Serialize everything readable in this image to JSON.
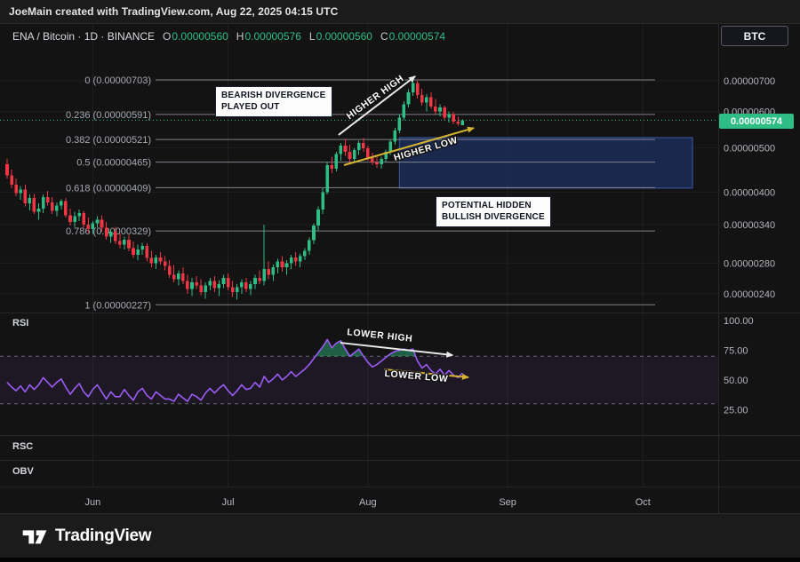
{
  "colors": {
    "up": "#2ebd85",
    "down": "#f23645",
    "rsi_line": "#9b5cf5",
    "yellow_line": "#d4b330",
    "white_line": "#e9e9e9",
    "fib_line": "#8b8e98",
    "axis_text": "#b2b5be",
    "zone_fill": "#1d2b55",
    "zone_border": "#3b59a6"
  },
  "header": {
    "attribution": "JoeMain created with TradingView.com, Aug 22, 2025 04:15 UTC"
  },
  "symbol_bar": {
    "title": "ENA / Bitcoin · 1D · BINANCE",
    "ohlc": {
      "o_label": "O",
      "o": "0.00000560",
      "h_label": "H",
      "h": "0.00000576",
      "l_label": "L",
      "l": "0.00000560",
      "c_label": "C",
      "c": "0.00000574"
    },
    "currency_button": "BTC"
  },
  "panes": {
    "rsi": "RSI",
    "rsc": "RSC",
    "obv": "OBV"
  },
  "price_tag": "0.00000574",
  "annotations": {
    "bearish_box_line1": "BEARISH DIVERGENCE",
    "bearish_box_line2": "PLAYED OUT",
    "bullish_box_line1": "POTENTIAL HIDDEN",
    "bullish_box_line2": "BULLISH DIVERGENCE",
    "higher_high": "HIGHER HIGH",
    "higher_low": "HIGHER LOW",
    "lower_high": "LOWER HIGH",
    "lower_low": "LOWER LOW"
  },
  "footer": {
    "brand": "TradingView"
  },
  "chart_data": {
    "type": "candlestick",
    "symbol": "ENA / Bitcoin",
    "exchange": "BINANCE",
    "interval": "1D",
    "price_unit": "BTC, OHLC values in 1e-8 BTC",
    "start_date": "2025-05-13",
    "end_date": "2025-08-22",
    "ohlc_display": {
      "open": "0.00000560",
      "high": "0.00000576",
      "low": "0.00000560",
      "close": "0.00000574"
    },
    "last_price": 574,
    "candles": [
      [
        460,
        472,
        428,
        435
      ],
      [
        435,
        448,
        408,
        415
      ],
      [
        415,
        428,
        392,
        398
      ],
      [
        398,
        412,
        385,
        405
      ],
      [
        405,
        415,
        372,
        378
      ],
      [
        378,
        395,
        365,
        388
      ],
      [
        388,
        396,
        358,
        362
      ],
      [
        362,
        378,
        348,
        368
      ],
      [
        368,
        395,
        360,
        390
      ],
      [
        390,
        402,
        374,
        380
      ],
      [
        380,
        390,
        358,
        364
      ],
      [
        364,
        380,
        354,
        374
      ],
      [
        374,
        386,
        366,
        382
      ],
      [
        382,
        388,
        352,
        356
      ],
      [
        356,
        368,
        338,
        344
      ],
      [
        344,
        362,
        336,
        354
      ],
      [
        354,
        366,
        346,
        360
      ],
      [
        360,
        364,
        334,
        340
      ],
      [
        340,
        352,
        326,
        332
      ],
      [
        332,
        346,
        324,
        342
      ],
      [
        342,
        354,
        334,
        348
      ],
      [
        348,
        356,
        328,
        334
      ],
      [
        334,
        344,
        315,
        320
      ],
      [
        320,
        332,
        310,
        328
      ],
      [
        328,
        336,
        308,
        313
      ],
      [
        313,
        325,
        302,
        307
      ],
      [
        307,
        320,
        300,
        315
      ],
      [
        315,
        323,
        297,
        302
      ],
      [
        302,
        312,
        287,
        292
      ],
      [
        292,
        307,
        284,
        300
      ],
      [
        300,
        310,
        292,
        305
      ],
      [
        305,
        309,
        282,
        287
      ],
      [
        287,
        298,
        274,
        280
      ],
      [
        280,
        292,
        272,
        288
      ],
      [
        288,
        296,
        278,
        282
      ],
      [
        282,
        290,
        270,
        276
      ],
      [
        276,
        284,
        260,
        264
      ],
      [
        264,
        277,
        254,
        258
      ],
      [
        258,
        270,
        250,
        266
      ],
      [
        266,
        274,
        252,
        256
      ],
      [
        256,
        264,
        240,
        246
      ],
      [
        246,
        260,
        237,
        254
      ],
      [
        254,
        262,
        246,
        250
      ],
      [
        250,
        258,
        238,
        242
      ],
      [
        242,
        254,
        234,
        250
      ],
      [
        250,
        260,
        244,
        256
      ],
      [
        256,
        262,
        242,
        247
      ],
      [
        247,
        257,
        237,
        252
      ],
      [
        252,
        264,
        247,
        260
      ],
      [
        260,
        266,
        244,
        248
      ],
      [
        248,
        256,
        236,
        242
      ],
      [
        242,
        252,
        233,
        248
      ],
      [
        248,
        258,
        240,
        254
      ],
      [
        254,
        260,
        242,
        246
      ],
      [
        246,
        256,
        238,
        252
      ],
      [
        252,
        264,
        246,
        260
      ],
      [
        260,
        270,
        252,
        256
      ],
      [
        256,
        340,
        250,
        272
      ],
      [
        272,
        282,
        258,
        264
      ],
      [
        264,
        278,
        256,
        274
      ],
      [
        274,
        286,
        266,
        282
      ],
      [
        282,
        290,
        268,
        274
      ],
      [
        274,
        284,
        264,
        280
      ],
      [
        280,
        292,
        272,
        288
      ],
      [
        288,
        296,
        276,
        282
      ],
      [
        282,
        294,
        274,
        290
      ],
      [
        290,
        302,
        284,
        298
      ],
      [
        298,
        318,
        292,
        314
      ],
      [
        314,
        342,
        308,
        338
      ],
      [
        338,
        372,
        330,
        366
      ],
      [
        366,
        408,
        358,
        400
      ],
      [
        400,
        465,
        395,
        458
      ],
      [
        458,
        478,
        440,
        450
      ],
      [
        450,
        490,
        444,
        484
      ],
      [
        484,
        512,
        468,
        505
      ],
      [
        505,
        522,
        480,
        490
      ],
      [
        490,
        508,
        462,
        472
      ],
      [
        472,
        498,
        464,
        494
      ],
      [
        494,
        518,
        482,
        512
      ],
      [
        512,
        525,
        490,
        498
      ],
      [
        498,
        505,
        468,
        475
      ],
      [
        475,
        488,
        458,
        464
      ],
      [
        464,
        482,
        452,
        460
      ],
      [
        460,
        478,
        450,
        472
      ],
      [
        472,
        495,
        465,
        490
      ],
      [
        490,
        520,
        482,
        515
      ],
      [
        515,
        552,
        508,
        545
      ],
      [
        545,
        590,
        538,
        582
      ],
      [
        582,
        632,
        574,
        622
      ],
      [
        622,
        670,
        612,
        660
      ],
      [
        660,
        703,
        648,
        692
      ],
      [
        692,
        700,
        640,
        652
      ],
      [
        652,
        672,
        618,
        628
      ],
      [
        628,
        655,
        600,
        645
      ],
      [
        645,
        660,
        608,
        615
      ],
      [
        615,
        638,
        592,
        600
      ],
      [
        600,
        622,
        585,
        612
      ],
      [
        612,
        618,
        575,
        582
      ],
      [
        582,
        600,
        568,
        592
      ],
      [
        592,
        598,
        562,
        570
      ],
      [
        570,
        584,
        558,
        564
      ],
      [
        560,
        576,
        560,
        574
      ]
    ],
    "rsi": {
      "values": [
        48,
        44,
        41,
        45,
        40,
        46,
        42,
        46,
        52,
        48,
        44,
        48,
        51,
        44,
        38,
        43,
        47,
        40,
        36,
        42,
        46,
        40,
        34,
        40,
        36,
        36,
        42,
        37,
        33,
        40,
        43,
        37,
        34,
        40,
        37,
        34,
        34,
        32,
        38,
        35,
        32,
        38,
        36,
        33,
        39,
        43,
        39,
        43,
        46,
        41,
        37,
        41,
        46,
        42,
        43,
        48,
        44,
        53,
        48,
        51,
        55,
        50,
        53,
        57,
        53,
        56,
        59,
        63,
        68,
        73,
        78,
        84,
        77,
        81,
        83,
        76,
        70,
        73,
        76,
        70,
        65,
        61,
        63,
        66,
        69,
        72,
        74,
        75,
        76,
        75,
        76,
        66,
        60,
        63,
        58,
        55,
        59,
        54,
        58,
        54,
        52,
        56
      ],
      "band": [
        30,
        70
      ],
      "axis_ticks": [
        100,
        75,
        50,
        25
      ]
    },
    "fib_levels": [
      {
        "ratio": "0",
        "price": 703,
        "label": "0 (0.00000703)"
      },
      {
        "ratio": "0.236",
        "price": 591,
        "label": "0.236 (0.00000591)"
      },
      {
        "ratio": "0.382",
        "price": 521,
        "label": "0.382 (0.00000521)"
      },
      {
        "ratio": "0.5",
        "price": 465,
        "label": "0.5 (0.00000465)"
      },
      {
        "ratio": "0.618",
        "price": 409,
        "label": "0.618 (0.00000409)"
      },
      {
        "ratio": "0.786",
        "price": 329,
        "label": "0.786 (0.00000329)"
      },
      {
        "ratio": "1",
        "price": 227,
        "label": "1 (0.00000227)"
      }
    ],
    "price_axis_ticks": [
      {
        "label": "0.00000700",
        "price": 700
      },
      {
        "label": "0.00000600",
        "price": 600
      },
      {
        "label": "0.00000500",
        "price": 500
      },
      {
        "label": "0.00000400",
        "price": 400
      },
      {
        "label": "0.00000340",
        "price": 340
      },
      {
        "label": "0.00000280",
        "price": 280
      },
      {
        "label": "0.00000240",
        "price": 240
      }
    ],
    "time_axis": [
      {
        "label": "Jun",
        "index": 19
      },
      {
        "label": "Jul",
        "index": 49
      },
      {
        "label": "Aug",
        "index": 80
      },
      {
        "label": "Sep",
        "index": 111
      },
      {
        "label": "Oct",
        "index": 141
      }
    ],
    "zone_rect": {
      "from_index": 87,
      "to_index": 152,
      "top_price": 526,
      "bottom_price": 408
    },
    "trend_lines": [
      {
        "id": "price-higher-high-line",
        "pane": "price",
        "color": "white",
        "from": {
          "index": 73.5,
          "price": 533
        },
        "to": {
          "index": 90.5,
          "price": 716
        },
        "label_key": "higher_high",
        "label_at": {
          "index": 82,
          "price": 637
        },
        "label_rotation": -36
      },
      {
        "id": "price-higher-low-line",
        "pane": "price",
        "color": "yellow",
        "from": {
          "index": 74.7,
          "price": 458
        },
        "to": {
          "index": 103.5,
          "price": 552
        },
        "label_key": "higher_low",
        "label_at": {
          "index": 93,
          "price": 490
        },
        "label_rotation": -16
      },
      {
        "id": "rsi-lower-high-line",
        "pane": "rsi",
        "color": "white",
        "from": {
          "index": 73.9,
          "rsi": 81.3
        },
        "to": {
          "index": 98.8,
          "rsi": 70.9
        },
        "label_key": "lower_high",
        "label_at": {
          "index": 82.6,
          "rsi": 85.1
        },
        "label_rotation": 6
      },
      {
        "id": "rsi-lower-low-line",
        "pane": "rsi",
        "color": "yellow",
        "from": {
          "index": 83.6,
          "rsi": 59
        },
        "to": {
          "index": 102.3,
          "rsi": 52.2
        },
        "label_key": "lower_low",
        "label_at": {
          "index": 90.7,
          "rsi": 50.7
        },
        "label_rotation": 5
      }
    ]
  }
}
